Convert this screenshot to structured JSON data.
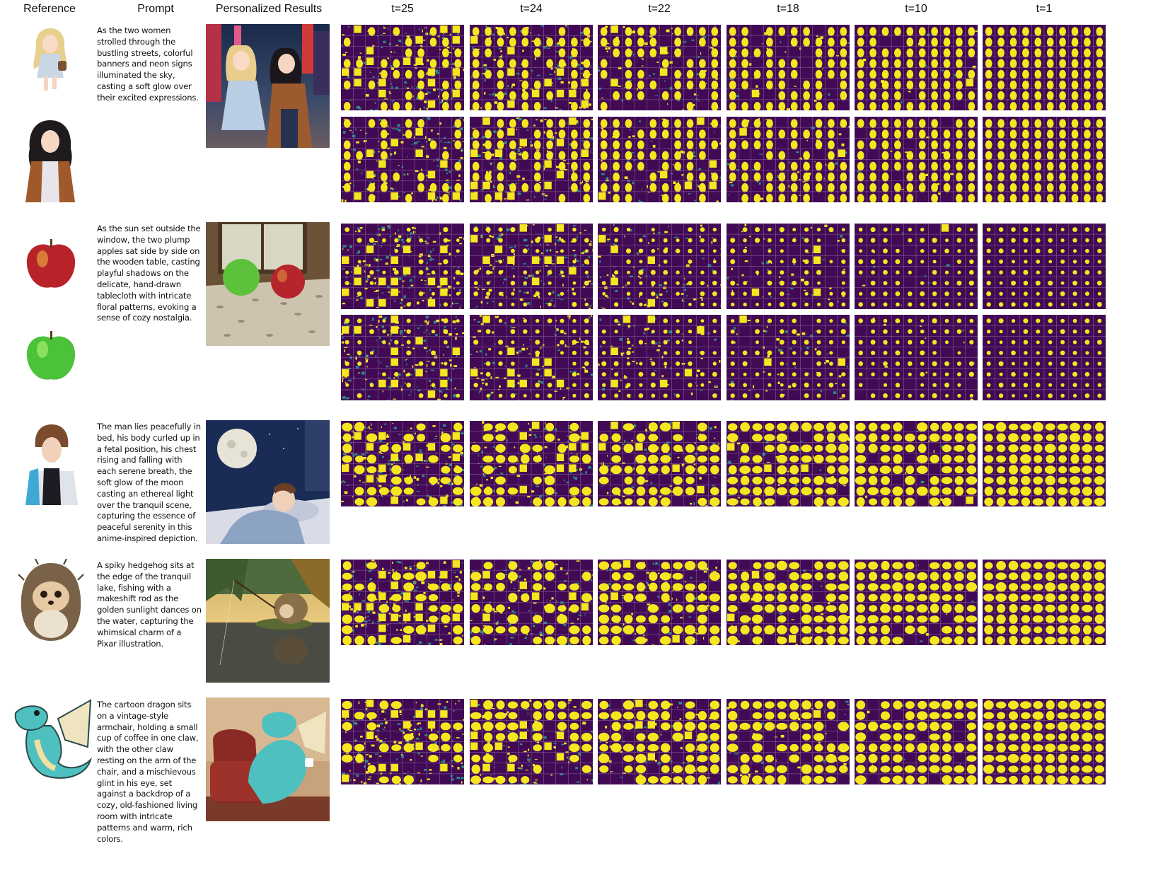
{
  "headers": {
    "reference": "Reference",
    "prompt": "Prompt",
    "results": "Personalized Results",
    "timesteps": [
      "t=25",
      "t=24",
      "t=22",
      "t=18",
      "t=10",
      "t=1"
    ]
  },
  "rows": [
    {
      "prompt": "As the two women strolled through the bustling streets, colorful banners and neon signs illuminated the sky, casting a soft glow over their excited expressions.",
      "references": [
        "blonde-anime-woman",
        "dark-haired-anime-woman"
      ],
      "result": "two-women-neon-street"
    },
    {
      "prompt": "As the sun set outside the window, the two plump apples sat side by side on the wooden table, casting playful shadows on the delicate, hand-drawn tablecloth with intricate floral patterns, evoking a sense of cozy nostalgia.",
      "references": [
        "red-apple",
        "green-apple"
      ],
      "result": "two-apples-on-table"
    },
    {
      "prompt": "The man lies peacefully in bed, his body curled up in a fetal position, his chest rising and falling with each serene breath, the soft glow of the moon casting an ethereal light over the tranquil scene, capturing the essence of peaceful serenity in this anime-inspired depiction.",
      "references": [
        "anime-man"
      ],
      "result": "man-sleeping-moonlight"
    },
    {
      "prompt": "A spiky hedgehog sits at the edge of the tranquil lake, fishing with a makeshift rod as the golden sunlight dances on the water, capturing the whimsical charm of a Pixar illustration.",
      "references": [
        "hedgehog"
      ],
      "result": "hedgehog-fishing-lake"
    },
    {
      "prompt": "The cartoon dragon sits on a vintage-style armchair, holding a small cup of coffee in one claw, with the other claw resting on the arm of the chair, and a mischievous glint in his eye, set against a backdrop of a cozy, old-fashioned living room with intricate patterns and warm, rich colors.",
      "references": [
        "cartoon-dragon"
      ],
      "result": "dragon-in-armchair"
    }
  ],
  "colors": {
    "map_background": "#420a55",
    "map_foreground": "#f5e61f",
    "map_mid": "#2a8c8a",
    "grid_line": "#8d6aa0"
  }
}
